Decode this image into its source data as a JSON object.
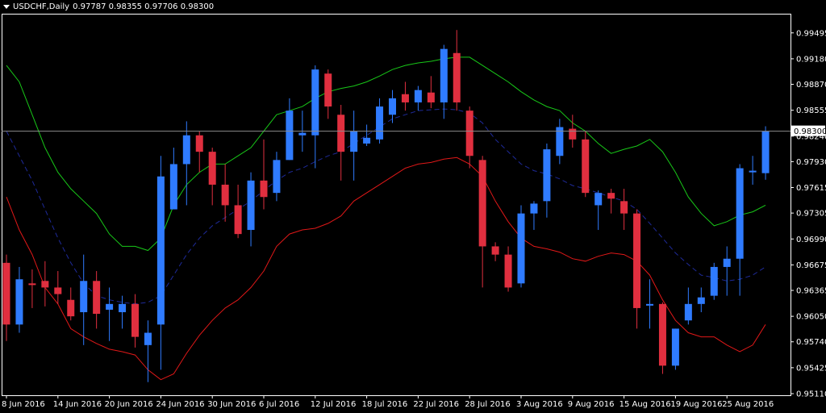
{
  "header": {
    "symbol_label": "USDCHF,Daily",
    "ohlc": "0.97787 0.98355 0.97706 0.98300",
    "dropdown_icon": "triangle-down-icon"
  },
  "colors": {
    "background": "#000000",
    "bull": "#2f7bff",
    "bear": "#e02f3f",
    "upper_band": "#18c718",
    "middle_band": "#1e2a9a",
    "lower_band": "#e01818",
    "price_line": "#8c8c8c",
    "text": "#ffffff"
  },
  "chart_data": {
    "type": "candlestick",
    "title": "USDCHF,Daily",
    "ylim": [
      0.9511,
      0.9963
    ],
    "y_ticks": [
      "0.99495",
      "0.99180",
      "0.98870",
      "0.98555",
      "0.98240",
      "0.97930",
      "0.97615",
      "0.97305",
      "0.96990",
      "0.96675",
      "0.96365",
      "0.96050",
      "0.95740",
      "0.95425",
      "0.95110"
    ],
    "x_ticks": [
      {
        "label": "8 Jun 2016",
        "index": 0
      },
      {
        "label": "14 Jun 2016",
        "index": 4
      },
      {
        "label": "20 Jun 2016",
        "index": 8
      },
      {
        "label": "24 Jun 2016",
        "index": 12
      },
      {
        "label": "30 Jun 2016",
        "index": 16
      },
      {
        "label": "6 Jul 2016",
        "index": 20
      },
      {
        "label": "12 Jul 2016",
        "index": 24
      },
      {
        "label": "18 Jul 2016",
        "index": 28
      },
      {
        "label": "22 Jul 2016",
        "index": 32
      },
      {
        "label": "28 Jul 2016",
        "index": 36
      },
      {
        "label": "3 Aug 2016",
        "index": 40
      },
      {
        "label": "9 Aug 2016",
        "index": 44
      },
      {
        "label": "15 Aug 2016",
        "index": 48
      },
      {
        "label": "19 Aug 2016",
        "index": 52
      },
      {
        "label": "25 Aug 2016",
        "index": 56
      }
    ],
    "current_price": "0.98300",
    "candles": [
      {
        "o": 0.967,
        "h": 0.968,
        "l": 0.9575,
        "c": 0.9595
      },
      {
        "o": 0.9595,
        "h": 0.9665,
        "l": 0.9585,
        "c": 0.965
      },
      {
        "o": 0.9645,
        "h": 0.9662,
        "l": 0.9615,
        "c": 0.9643
      },
      {
        "o": 0.9648,
        "h": 0.9672,
        "l": 0.9617,
        "c": 0.964
      },
      {
        "o": 0.964,
        "h": 0.966,
        "l": 0.962,
        "c": 0.9632
      },
      {
        "o": 0.9625,
        "h": 0.964,
        "l": 0.96,
        "c": 0.9605
      },
      {
        "o": 0.961,
        "h": 0.968,
        "l": 0.957,
        "c": 0.9648
      },
      {
        "o": 0.9648,
        "h": 0.966,
        "l": 0.959,
        "c": 0.9608
      },
      {
        "o": 0.9613,
        "h": 0.964,
        "l": 0.9575,
        "c": 0.962
      },
      {
        "o": 0.961,
        "h": 0.963,
        "l": 0.959,
        "c": 0.962
      },
      {
        "o": 0.962,
        "h": 0.9632,
        "l": 0.9567,
        "c": 0.958
      },
      {
        "o": 0.957,
        "h": 0.96,
        "l": 0.9525,
        "c": 0.9585
      },
      {
        "o": 0.9595,
        "h": 0.98,
        "l": 0.954,
        "c": 0.9775
      },
      {
        "o": 0.9735,
        "h": 0.981,
        "l": 0.9735,
        "c": 0.979
      },
      {
        "o": 0.979,
        "h": 0.9842,
        "l": 0.974,
        "c": 0.9825
      },
      {
        "o": 0.9825,
        "h": 0.983,
        "l": 0.978,
        "c": 0.9805
      },
      {
        "o": 0.9805,
        "h": 0.981,
        "l": 0.974,
        "c": 0.9765
      },
      {
        "o": 0.9765,
        "h": 0.979,
        "l": 0.972,
        "c": 0.974
      },
      {
        "o": 0.974,
        "h": 0.9765,
        "l": 0.97,
        "c": 0.9705
      },
      {
        "o": 0.971,
        "h": 0.978,
        "l": 0.969,
        "c": 0.977
      },
      {
        "o": 0.977,
        "h": 0.982,
        "l": 0.9735,
        "c": 0.975
      },
      {
        "o": 0.9755,
        "h": 0.9805,
        "l": 0.9745,
        "c": 0.9795
      },
      {
        "o": 0.9795,
        "h": 0.987,
        "l": 0.9795,
        "c": 0.9855
      },
      {
        "o": 0.9825,
        "h": 0.9855,
        "l": 0.9805,
        "c": 0.9828
      },
      {
        "o": 0.9825,
        "h": 0.991,
        "l": 0.9785,
        "c": 0.9905
      },
      {
        "o": 0.99,
        "h": 0.9905,
        "l": 0.9845,
        "c": 0.986
      },
      {
        "o": 0.985,
        "h": 0.9862,
        "l": 0.977,
        "c": 0.9805
      },
      {
        "o": 0.9805,
        "h": 0.9855,
        "l": 0.977,
        "c": 0.983
      },
      {
        "o": 0.9815,
        "h": 0.9838,
        "l": 0.9812,
        "c": 0.9822
      },
      {
        "o": 0.982,
        "h": 0.987,
        "l": 0.9815,
        "c": 0.986
      },
      {
        "o": 0.985,
        "h": 0.988,
        "l": 0.984,
        "c": 0.987
      },
      {
        "o": 0.9875,
        "h": 0.989,
        "l": 0.9855,
        "c": 0.9865
      },
      {
        "o": 0.9865,
        "h": 0.9885,
        "l": 0.9855,
        "c": 0.988
      },
      {
        "o": 0.9877,
        "h": 0.9897,
        "l": 0.9858,
        "c": 0.9865
      },
      {
        "o": 0.9865,
        "h": 0.9935,
        "l": 0.9845,
        "c": 0.993
      },
      {
        "o": 0.9925,
        "h": 0.9953,
        "l": 0.9855,
        "c": 0.9865
      },
      {
        "o": 0.9855,
        "h": 0.986,
        "l": 0.9785,
        "c": 0.98
      },
      {
        "o": 0.9795,
        "h": 0.98,
        "l": 0.964,
        "c": 0.969
      },
      {
        "o": 0.969,
        "h": 0.9695,
        "l": 0.9672,
        "c": 0.968
      },
      {
        "o": 0.968,
        "h": 0.969,
        "l": 0.9635,
        "c": 0.964
      },
      {
        "o": 0.9645,
        "h": 0.974,
        "l": 0.964,
        "c": 0.973
      },
      {
        "o": 0.973,
        "h": 0.9745,
        "l": 0.971,
        "c": 0.9742
      },
      {
        "o": 0.9745,
        "h": 0.9815,
        "l": 0.9725,
        "c": 0.9808
      },
      {
        "o": 0.98,
        "h": 0.9845,
        "l": 0.979,
        "c": 0.9835
      },
      {
        "o": 0.9833,
        "h": 0.985,
        "l": 0.981,
        "c": 0.982
      },
      {
        "o": 0.982,
        "h": 0.983,
        "l": 0.975,
        "c": 0.9755
      },
      {
        "o": 0.974,
        "h": 0.9758,
        "l": 0.971,
        "c": 0.9755
      },
      {
        "o": 0.9755,
        "h": 0.976,
        "l": 0.973,
        "c": 0.9748
      },
      {
        "o": 0.9745,
        "h": 0.976,
        "l": 0.971,
        "c": 0.973
      },
      {
        "o": 0.973,
        "h": 0.9735,
        "l": 0.959,
        "c": 0.9615
      },
      {
        "o": 0.9618,
        "h": 0.965,
        "l": 0.959,
        "c": 0.962
      },
      {
        "o": 0.962,
        "h": 0.9622,
        "l": 0.9535,
        "c": 0.9545
      },
      {
        "o": 0.9545,
        "h": 0.959,
        "l": 0.954,
        "c": 0.959
      },
      {
        "o": 0.96,
        "h": 0.964,
        "l": 0.9595,
        "c": 0.962
      },
      {
        "o": 0.962,
        "h": 0.964,
        "l": 0.961,
        "c": 0.9628
      },
      {
        "o": 0.963,
        "h": 0.967,
        "l": 0.9625,
        "c": 0.9665
      },
      {
        "o": 0.9665,
        "h": 0.969,
        "l": 0.963,
        "c": 0.9675
      },
      {
        "o": 0.9675,
        "h": 0.979,
        "l": 0.963,
        "c": 0.9785
      },
      {
        "o": 0.978,
        "h": 0.98,
        "l": 0.9765,
        "c": 0.9782
      },
      {
        "o": 0.9779,
        "h": 0.9836,
        "l": 0.9771,
        "c": 0.983
      }
    ],
    "upper_band": [
      0.991,
      0.989,
      0.985,
      0.981,
      0.978,
      0.976,
      0.9745,
      0.973,
      0.9705,
      0.969,
      0.969,
      0.9685,
      0.97,
      0.974,
      0.9765,
      0.978,
      0.979,
      0.979,
      0.98,
      0.981,
      0.983,
      0.985,
      0.9855,
      0.986,
      0.987,
      0.9878,
      0.9882,
      0.9885,
      0.989,
      0.9897,
      0.9905,
      0.991,
      0.9913,
      0.9915,
      0.9918,
      0.992,
      0.992,
      0.991,
      0.99,
      0.989,
      0.9878,
      0.9868,
      0.986,
      0.9855,
      0.984,
      0.983,
      0.9815,
      0.9803,
      0.9808,
      0.9812,
      0.982,
      0.9805,
      0.978,
      0.975,
      0.973,
      0.9715,
      0.972,
      0.9728,
      0.9732,
      0.974
    ],
    "middle_band": [
      0.983,
      0.98,
      0.977,
      0.9735,
      0.97,
      0.967,
      0.9645,
      0.963,
      0.9625,
      0.9622,
      0.962,
      0.9622,
      0.963,
      0.9655,
      0.968,
      0.97,
      0.9715,
      0.9725,
      0.9735,
      0.9745,
      0.9758,
      0.977,
      0.978,
      0.9785,
      0.9793,
      0.98,
      0.9805,
      0.9815,
      0.9825,
      0.9835,
      0.9845,
      0.985,
      0.9855,
      0.9856,
      0.9857,
      0.9856,
      0.9852,
      0.984,
      0.982,
      0.9805,
      0.979,
      0.9782,
      0.9778,
      0.9772,
      0.9764,
      0.976,
      0.9755,
      0.975,
      0.9745,
      0.9735,
      0.9718,
      0.97,
      0.9682,
      0.9668,
      0.9655,
      0.9652,
      0.9648,
      0.965,
      0.9655,
      0.9665
    ],
    "lower_band": [
      0.975,
      0.971,
      0.968,
      0.964,
      0.962,
      0.959,
      0.958,
      0.9572,
      0.9565,
      0.9562,
      0.9558,
      0.954,
      0.9528,
      0.9535,
      0.956,
      0.9582,
      0.96,
      0.9615,
      0.9625,
      0.964,
      0.966,
      0.969,
      0.9705,
      0.971,
      0.9712,
      0.9718,
      0.9727,
      0.9745,
      0.9755,
      0.9765,
      0.9775,
      0.9785,
      0.979,
      0.9792,
      0.9796,
      0.9798,
      0.979,
      0.9775,
      0.9745,
      0.972,
      0.97,
      0.969,
      0.9687,
      0.9683,
      0.9675,
      0.9672,
      0.9678,
      0.9682,
      0.968,
      0.9672,
      0.9655,
      0.9625,
      0.96,
      0.9585,
      0.958,
      0.958,
      0.957,
      0.9562,
      0.957,
      0.9595
    ]
  }
}
